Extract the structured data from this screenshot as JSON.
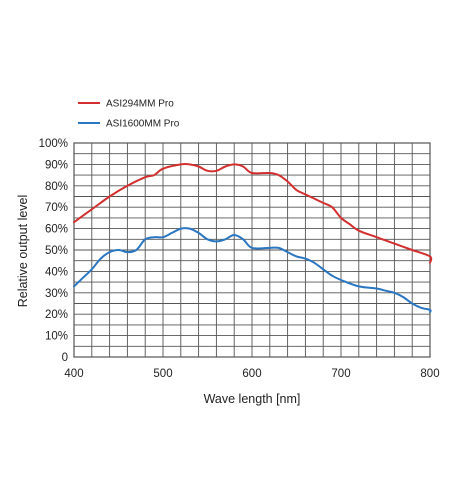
{
  "chart_data": {
    "type": "line",
    "title": "",
    "xlabel": "Wave length [nm]",
    "ylabel": "Relative output level",
    "xlim": [
      400,
      800
    ],
    "ylim": [
      0,
      100
    ],
    "x_ticks": [
      "400",
      "500",
      "600",
      "700",
      "800"
    ],
    "y_ticks": [
      "0",
      "10%",
      "20%",
      "30%",
      "40%",
      "50%",
      "60%",
      "70%",
      "80%",
      "90%",
      "100%"
    ],
    "grid": true,
    "legend_position": "top-left",
    "series": [
      {
        "name": "ASI294MM Pro",
        "color": "#d32f2f",
        "points": [
          [
            400,
            63
          ],
          [
            420,
            69
          ],
          [
            440,
            75
          ],
          [
            460,
            80
          ],
          [
            480,
            84
          ],
          [
            490,
            85
          ],
          [
            500,
            88
          ],
          [
            520,
            90
          ],
          [
            530,
            90
          ],
          [
            540,
            89
          ],
          [
            550,
            87
          ],
          [
            560,
            87
          ],
          [
            570,
            89
          ],
          [
            580,
            90
          ],
          [
            590,
            89
          ],
          [
            600,
            86
          ],
          [
            620,
            86
          ],
          [
            630,
            85
          ],
          [
            640,
            82
          ],
          [
            650,
            78
          ],
          [
            660,
            76
          ],
          [
            670,
            74
          ],
          [
            680,
            72
          ],
          [
            690,
            70
          ],
          [
            700,
            65
          ],
          [
            710,
            62
          ],
          [
            720,
            59
          ],
          [
            740,
            56
          ],
          [
            760,
            53
          ],
          [
            780,
            50
          ],
          [
            800,
            47
          ],
          [
            810,
            44
          ]
        ]
      },
      {
        "name": "ASI1600MM Pro",
        "color": "#2a76c2",
        "points": [
          [
            400,
            33
          ],
          [
            410,
            37
          ],
          [
            420,
            41
          ],
          [
            430,
            46
          ],
          [
            440,
            49
          ],
          [
            450,
            50
          ],
          [
            460,
            49
          ],
          [
            470,
            50
          ],
          [
            480,
            55
          ],
          [
            490,
            56
          ],
          [
            500,
            56
          ],
          [
            510,
            58
          ],
          [
            520,
            60
          ],
          [
            530,
            60
          ],
          [
            540,
            58
          ],
          [
            550,
            55
          ],
          [
            560,
            54
          ],
          [
            570,
            55
          ],
          [
            580,
            57
          ],
          [
            590,
            55
          ],
          [
            600,
            51
          ],
          [
            620,
            51
          ],
          [
            630,
            51
          ],
          [
            640,
            49
          ],
          [
            650,
            47
          ],
          [
            660,
            46
          ],
          [
            670,
            44
          ],
          [
            680,
            41
          ],
          [
            690,
            38
          ],
          [
            700,
            36
          ],
          [
            720,
            33
          ],
          [
            740,
            32
          ],
          [
            750,
            31
          ],
          [
            760,
            30
          ],
          [
            770,
            28
          ],
          [
            780,
            25
          ],
          [
            790,
            23
          ],
          [
            800,
            22
          ],
          [
            810,
            21
          ]
        ]
      }
    ]
  },
  "colors": {
    "grid": "#555555",
    "frame": "#555555"
  }
}
